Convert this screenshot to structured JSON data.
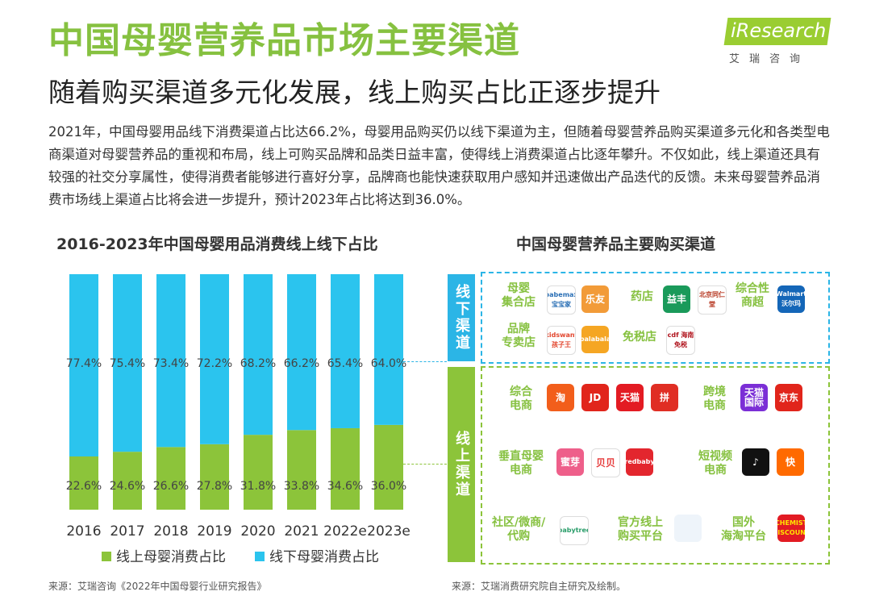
{
  "header": {
    "title": "中国母婴营养品市场主要渠道",
    "subtitle": "随着购买渠道多元化发展，线上购买占比正逐步提升",
    "logo_text": "iResearch",
    "logo_cn": "艾瑞咨询"
  },
  "intro_text": "2021年，中国母婴用品线下消费渠道占比达66.2%，母婴用品购买仍以线下渠道为主，但随着母婴营养品购买渠道多元化和各类型电商渠道对母婴营养品的重视和布局，线上可购买品牌和品类日益丰富，使得线上消费渠道占比逐年攀升。不仅如此，线上渠道还具有较强的社交分享属性，使得消费者能够进行喜好分享，品牌商也能快速获取用户感知并迅速做出产品迭代的反馈。未来母婴营养品消费市场线上渠道占比将会进一步提升，预计2023年占比将达到36.0%。",
  "colors": {
    "green": "#8cc43a",
    "blue": "#2bc4ee",
    "title_green": "#86c140"
  },
  "chart_data": {
    "type": "bar",
    "stacked": true,
    "title": "2016-2023年中国母婴用品消费线上线下占比",
    "categories": [
      "2016",
      "2017",
      "2018",
      "2019",
      "2020",
      "2021",
      "2022e",
      "2023e"
    ],
    "series": [
      {
        "name": "线上母婴消费占比",
        "color": "#8cc43a",
        "values": [
          22.6,
          24.6,
          26.6,
          27.8,
          31.8,
          33.8,
          34.6,
          36.0
        ],
        "labels": [
          "22.6%",
          "24.6%",
          "26.6%",
          "27.8%",
          "31.8%",
          "33.8%",
          "34.6%",
          "36.0%"
        ]
      },
      {
        "name": "线下母婴消费占比",
        "color": "#2bc4ee",
        "values": [
          77.4,
          75.4,
          73.4,
          72.2,
          68.2,
          66.2,
          65.4,
          64.0
        ],
        "labels": [
          "77.4%",
          "75.4%",
          "73.4%",
          "72.2%",
          "68.2%",
          "66.2%",
          "65.4%",
          "64.0%"
        ]
      }
    ],
    "ylim": [
      0,
      100
    ],
    "legend": "bottom"
  },
  "channels": {
    "title": "中国母婴营养品主要购买渠道",
    "offline_label": "线下渠道",
    "online_label": "线上渠道",
    "offline": [
      {
        "name": "母婴集合店",
        "lines": [
          "母婴",
          "集合店"
        ],
        "logos": [
          {
            "name": "babemax",
            "text": "babemax 宝宝家",
            "color": "#ffffff",
            "fg": "#2a6fb5"
          },
          {
            "name": "lefan",
            "text": "乐友",
            "color": "#f29b38",
            "fg": "#ffffff"
          }
        ]
      },
      {
        "name": "药店",
        "lines": [
          "药店"
        ],
        "logos": [
          {
            "name": "yifeng",
            "text": "益丰",
            "color": "#1a9a5a",
            "fg": "#ffffff"
          },
          {
            "name": "beijing-tongrentang",
            "text": "北京同仁堂",
            "color": "#ffffff",
            "fg": "#b5341d"
          }
        ]
      },
      {
        "name": "综合性商超",
        "lines": [
          "综合性",
          "商超"
        ],
        "logos": [
          {
            "name": "walmart",
            "text": "Walmart 沃尔玛",
            "color": "#1466b8",
            "fg": "#ffffff"
          }
        ]
      },
      {
        "name": "品牌专卖店",
        "lines": [
          "品牌",
          "专卖店"
        ],
        "logos": [
          {
            "name": "kidswant",
            "text": "kidswant 孩子王",
            "color": "#ffffff",
            "fg": "#e2462e"
          },
          {
            "name": "balabala",
            "text": "balabala",
            "color": "#f5a623",
            "fg": "#ffffff"
          }
        ]
      },
      {
        "name": "免税店",
        "lines": [
          "免税店"
        ],
        "logos": [
          {
            "name": "cdf",
            "text": "cdf 海南免税",
            "color": "#ffffff",
            "fg": "#b0141d"
          }
        ]
      }
    ],
    "online": [
      {
        "name": "综合电商",
        "lines": [
          "综合",
          "电商"
        ],
        "logos": [
          {
            "name": "taobao",
            "text": "淘",
            "color": "#f25e1b",
            "fg": "#ffffff"
          },
          {
            "name": "jd",
            "text": "JD",
            "color": "#e1251b",
            "fg": "#ffffff"
          },
          {
            "name": "tmall",
            "text": "天猫",
            "color": "#e31b23",
            "fg": "#ffffff"
          },
          {
            "name": "pinduoduo",
            "text": "拼",
            "color": "#e02e24",
            "fg": "#ffffff"
          }
        ]
      },
      {
        "name": "跨境电商",
        "lines": [
          "跨境",
          "电商"
        ],
        "logos": [
          {
            "name": "tmall-global",
            "text": "天猫国际",
            "color": "#7b2ed6",
            "fg": "#ffffff"
          },
          {
            "name": "jd-global",
            "text": "京东",
            "color": "#e1251b",
            "fg": "#ffffff"
          }
        ]
      },
      {
        "name": "垂直母婴电商",
        "lines": [
          "垂直母婴",
          "电商"
        ],
        "logos": [
          {
            "name": "mia",
            "text": "蜜芽",
            "color": "#ee5f8a",
            "fg": "#ffffff"
          },
          {
            "name": "beibei",
            "text": "贝贝",
            "color": "#ffffff",
            "fg": "#e63c3c"
          },
          {
            "name": "redbaby",
            "text": "redbaby",
            "color": "#e3262e",
            "fg": "#ffffff"
          }
        ]
      },
      {
        "name": "短视频电商",
        "lines": [
          "短视频",
          "电商"
        ],
        "logos": [
          {
            "name": "douyin",
            "text": "♪",
            "color": "#111111",
            "fg": "#ffffff"
          },
          {
            "name": "kuaishou",
            "text": "快",
            "color": "#ff6a00",
            "fg": "#ffffff"
          }
        ]
      },
      {
        "name": "社区/微商/代购",
        "lines": [
          "社区/微商/",
          "代购"
        ],
        "logos": [
          {
            "name": "babytree",
            "text": "babytree",
            "color": "#ffffff",
            "fg": "#2a9d6a"
          }
        ]
      },
      {
        "name": "官方线上购买平台",
        "lines": [
          "官方线上",
          "购买平台"
        ],
        "logos": [
          {
            "name": "official-site",
            "text": "",
            "color": "#eef4fa",
            "fg": "#7a9ab8"
          }
        ]
      },
      {
        "name": "国外海淘平台",
        "lines": [
          "国外",
          "海淘平台"
        ],
        "logos": [
          {
            "name": "chemist-warehouse",
            "text": "CHEMIST DISCOUNT",
            "color": "#e21b23",
            "fg": "#ffe600"
          }
        ]
      }
    ]
  },
  "footer": {
    "source_left": "来源：艾瑞咨询《2022年中国母婴行业研究报告》",
    "source_right": "来源：艾瑞消费研究院自主研究及绘制。"
  }
}
